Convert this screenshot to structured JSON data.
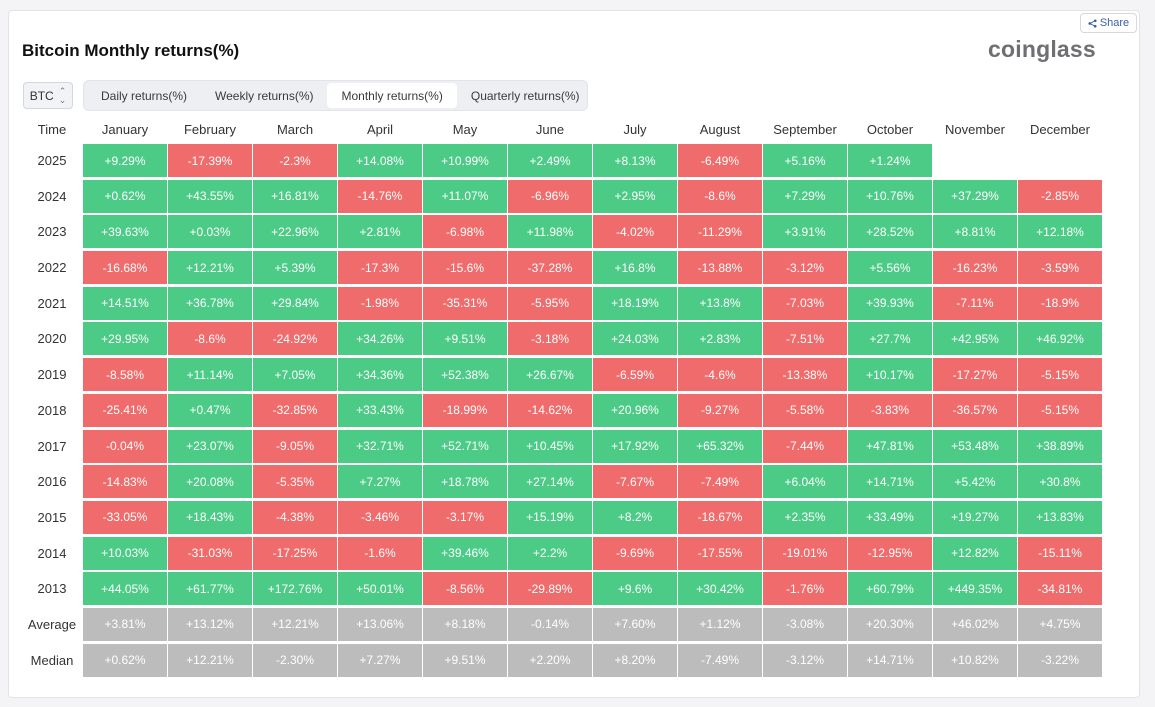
{
  "header": {
    "title": "Bitcoin Monthly returns(%)",
    "logo": "coinglass",
    "share_label": "Share"
  },
  "controls": {
    "asset": "BTC",
    "tabs": [
      "Daily returns(%)",
      "Weekly returns(%)",
      "Monthly returns(%)",
      "Quarterly returns(%)"
    ],
    "active_tab": 2
  },
  "colors": {
    "positive": "#4ccb87",
    "negative": "#f06b6b",
    "summary": "#bcbcbc"
  },
  "table": {
    "corner_label": "Time",
    "months": [
      "January",
      "February",
      "March",
      "April",
      "May",
      "June",
      "July",
      "August",
      "September",
      "October",
      "November",
      "December"
    ],
    "rows": [
      {
        "year": "2025",
        "values": [
          "+9.29%",
          "-17.39%",
          "-2.3%",
          "+14.08%",
          "+10.99%",
          "+2.49%",
          "+8.13%",
          "-6.49%",
          "+5.16%",
          "+1.24%",
          "",
          ""
        ]
      },
      {
        "year": "2024",
        "values": [
          "+0.62%",
          "+43.55%",
          "+16.81%",
          "-14.76%",
          "+11.07%",
          "-6.96%",
          "+2.95%",
          "-8.6%",
          "+7.29%",
          "+10.76%",
          "+37.29%",
          "-2.85%"
        ]
      },
      {
        "year": "2023",
        "values": [
          "+39.63%",
          "+0.03%",
          "+22.96%",
          "+2.81%",
          "-6.98%",
          "+11.98%",
          "-4.02%",
          "-11.29%",
          "+3.91%",
          "+28.52%",
          "+8.81%",
          "+12.18%"
        ]
      },
      {
        "year": "2022",
        "values": [
          "-16.68%",
          "+12.21%",
          "+5.39%",
          "-17.3%",
          "-15.6%",
          "-37.28%",
          "+16.8%",
          "-13.88%",
          "-3.12%",
          "+5.56%",
          "-16.23%",
          "-3.59%"
        ]
      },
      {
        "year": "2021",
        "values": [
          "+14.51%",
          "+36.78%",
          "+29.84%",
          "-1.98%",
          "-35.31%",
          "-5.95%",
          "+18.19%",
          "+13.8%",
          "-7.03%",
          "+39.93%",
          "-7.11%",
          "-18.9%"
        ]
      },
      {
        "year": "2020",
        "values": [
          "+29.95%",
          "-8.6%",
          "-24.92%",
          "+34.26%",
          "+9.51%",
          "-3.18%",
          "+24.03%",
          "+2.83%",
          "-7.51%",
          "+27.7%",
          "+42.95%",
          "+46.92%"
        ]
      },
      {
        "year": "2019",
        "values": [
          "-8.58%",
          "+11.14%",
          "+7.05%",
          "+34.36%",
          "+52.38%",
          "+26.67%",
          "-6.59%",
          "-4.6%",
          "-13.38%",
          "+10.17%",
          "-17.27%",
          "-5.15%"
        ]
      },
      {
        "year": "2018",
        "values": [
          "-25.41%",
          "+0.47%",
          "-32.85%",
          "+33.43%",
          "-18.99%",
          "-14.62%",
          "+20.96%",
          "-9.27%",
          "-5.58%",
          "-3.83%",
          "-36.57%",
          "-5.15%"
        ]
      },
      {
        "year": "2017",
        "values": [
          "-0.04%",
          "+23.07%",
          "-9.05%",
          "+32.71%",
          "+52.71%",
          "+10.45%",
          "+17.92%",
          "+65.32%",
          "-7.44%",
          "+47.81%",
          "+53.48%",
          "+38.89%"
        ]
      },
      {
        "year": "2016",
        "values": [
          "-14.83%",
          "+20.08%",
          "-5.35%",
          "+7.27%",
          "+18.78%",
          "+27.14%",
          "-7.67%",
          "-7.49%",
          "+6.04%",
          "+14.71%",
          "+5.42%",
          "+30.8%"
        ]
      },
      {
        "year": "2015",
        "values": [
          "-33.05%",
          "+18.43%",
          "-4.38%",
          "-3.46%",
          "-3.17%",
          "+15.19%",
          "+8.2%",
          "-18.67%",
          "+2.35%",
          "+33.49%",
          "+19.27%",
          "+13.83%"
        ]
      },
      {
        "year": "2014",
        "values": [
          "+10.03%",
          "-31.03%",
          "-17.25%",
          "-1.6%",
          "+39.46%",
          "+2.2%",
          "-9.69%",
          "-17.55%",
          "-19.01%",
          "-12.95%",
          "+12.82%",
          "-15.11%"
        ]
      },
      {
        "year": "2013",
        "values": [
          "+44.05%",
          "+61.77%",
          "+172.76%",
          "+50.01%",
          "-8.56%",
          "-29.89%",
          "+9.6%",
          "+30.42%",
          "-1.76%",
          "+60.79%",
          "+449.35%",
          "-34.81%"
        ]
      }
    ],
    "summary": [
      {
        "label": "Average",
        "values": [
          "+3.81%",
          "+13.12%",
          "+12.21%",
          "+13.06%",
          "+8.18%",
          "-0.14%",
          "+7.60%",
          "+1.12%",
          "-3.08%",
          "+20.30%",
          "+46.02%",
          "+4.75%"
        ]
      },
      {
        "label": "Median",
        "values": [
          "+0.62%",
          "+12.21%",
          "-2.30%",
          "+7.27%",
          "+9.51%",
          "+2.20%",
          "+8.20%",
          "-7.49%",
          "-3.12%",
          "+14.71%",
          "+10.82%",
          "-3.22%"
        ]
      }
    ]
  }
}
